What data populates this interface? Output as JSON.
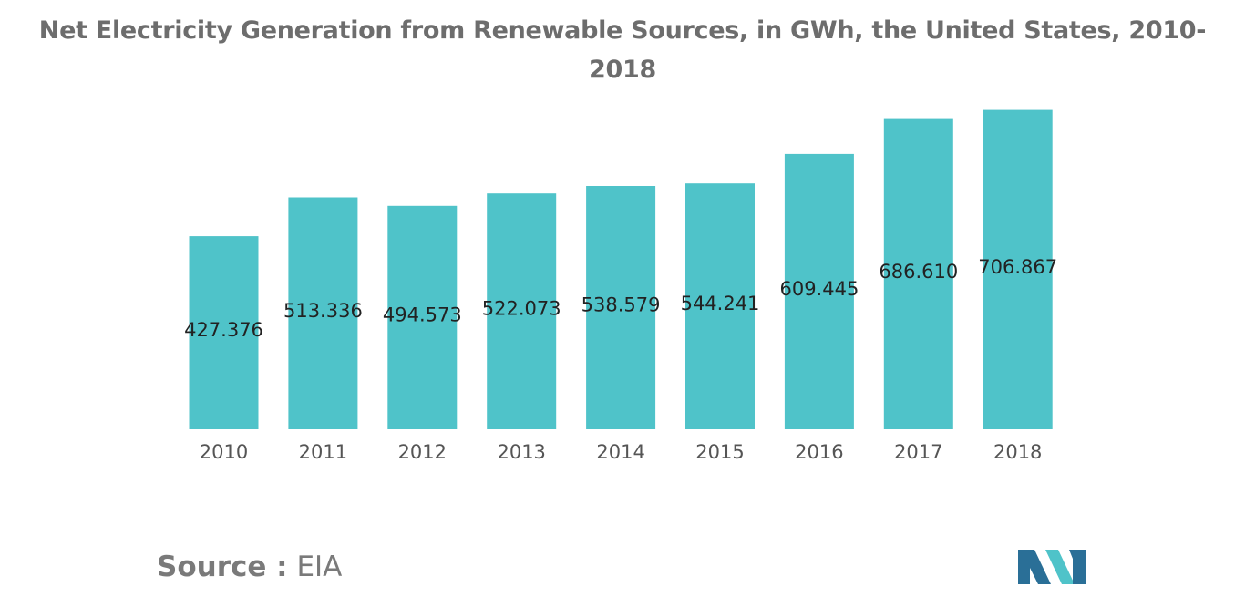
{
  "colors": {
    "bar": "#4fc3c9",
    "title": "#6d6d6d",
    "label": "#222222",
    "tick": "#555555",
    "logo_dark": "#2a6f97",
    "logo_light": "#4fc3c9"
  },
  "chart_data": {
    "type": "bar",
    "title": "Net Electricity Generation from Renewable Sources, in GWh, the United States, 2010-2018",
    "xlabel": "",
    "ylabel": "",
    "categories": [
      "2010",
      "2011",
      "2012",
      "2013",
      "2014",
      "2015",
      "2016",
      "2017",
      "2018"
    ],
    "values": [
      427.376,
      513.336,
      494.573,
      522.073,
      538.579,
      544.241,
      609.445,
      686.61,
      706.867
    ],
    "value_labels": [
      "427.376",
      "513.336",
      "494.573",
      "522.073",
      "538.579",
      "544.241",
      "609.445",
      "686.610",
      "706.867"
    ],
    "ylim": [
      0,
      710
    ],
    "grid": false,
    "legend": "none"
  },
  "footer": {
    "source_label": "Source :",
    "source_value": "EIA"
  },
  "logo": {
    "name": "mordor-intelligence-logo"
  }
}
